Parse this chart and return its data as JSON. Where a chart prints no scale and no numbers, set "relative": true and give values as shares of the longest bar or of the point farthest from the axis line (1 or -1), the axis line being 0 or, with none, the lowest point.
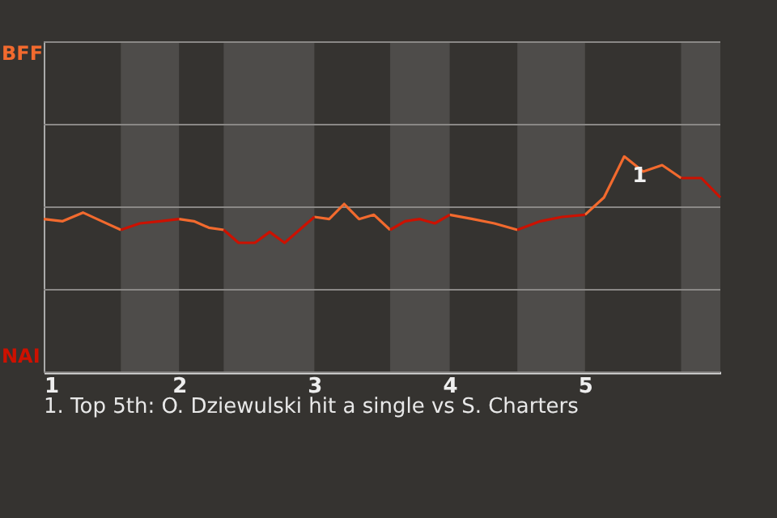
{
  "chart_data": {
    "type": "line",
    "relative": true,
    "x": [
      1,
      1.14,
      1.29,
      1.43,
      1.57,
      1.71,
      1.86,
      2,
      2.11,
      2.22,
      2.33,
      2.44,
      2.56,
      2.67,
      2.78,
      2.89,
      3,
      3.11,
      3.22,
      3.33,
      3.44,
      3.56,
      3.67,
      3.78,
      3.89,
      4,
      4.17,
      4.33,
      4.5,
      4.67,
      4.83,
      5,
      5.14,
      5.29,
      5.43,
      5.57,
      5.71,
      5.86,
      6
    ],
    "series": [
      {
        "color": "#f26a2e",
        "values": [
          0.71,
          0.7,
          0.74,
          0.7,
          0.66,
          null,
          null,
          0.71,
          0.7,
          0.67,
          0.66,
          null,
          null,
          null,
          null,
          null,
          0.72,
          0.71,
          0.78,
          0.71,
          0.73,
          0.66,
          null,
          null,
          null,
          0.73,
          0.71,
          0.69,
          0.66,
          null,
          null,
          0.73,
          0.81,
          1,
          0.93,
          0.96,
          0.9,
          null,
          null
        ]
      },
      {
        "color": "#cc1100",
        "values": [
          null,
          null,
          null,
          null,
          0.66,
          0.69,
          0.7,
          0.71,
          null,
          null,
          0.66,
          0.6,
          0.6,
          0.65,
          0.6,
          0.66,
          0.72,
          null,
          null,
          null,
          null,
          0.66,
          0.7,
          0.71,
          0.69,
          0.73,
          null,
          null,
          0.66,
          0.7,
          0.72,
          0.73,
          null,
          null,
          null,
          null,
          0.9,
          0.9,
          0.81
        ]
      }
    ],
    "xlim": [
      1,
      6
    ],
    "xticks": [
      1,
      2,
      3,
      4,
      5
    ],
    "ylim": [
      0,
      1.53
    ],
    "grid": true,
    "bands": [
      {
        "axis": "x",
        "from": 1.57,
        "to": 2,
        "color": "#4e4c4a"
      },
      {
        "axis": "x",
        "from": 2.33,
        "to": 3,
        "color": "#4e4c4a"
      },
      {
        "axis": "x",
        "from": 3.56,
        "to": 4,
        "color": "#4e4c4a"
      },
      {
        "axis": "x",
        "from": 4.5,
        "to": 5,
        "color": "#4e4c4a"
      },
      {
        "axis": "x",
        "from": 5.71,
        "to": 6,
        "color": "#4e4c4a"
      }
    ],
    "annotations": [
      "BFF",
      "NAI",
      {
        "text": "1",
        "x": 5.29,
        "y": 1
      },
      "1. Top 5th: O. Dziewulski hit a single vs S. Charters"
    ]
  }
}
